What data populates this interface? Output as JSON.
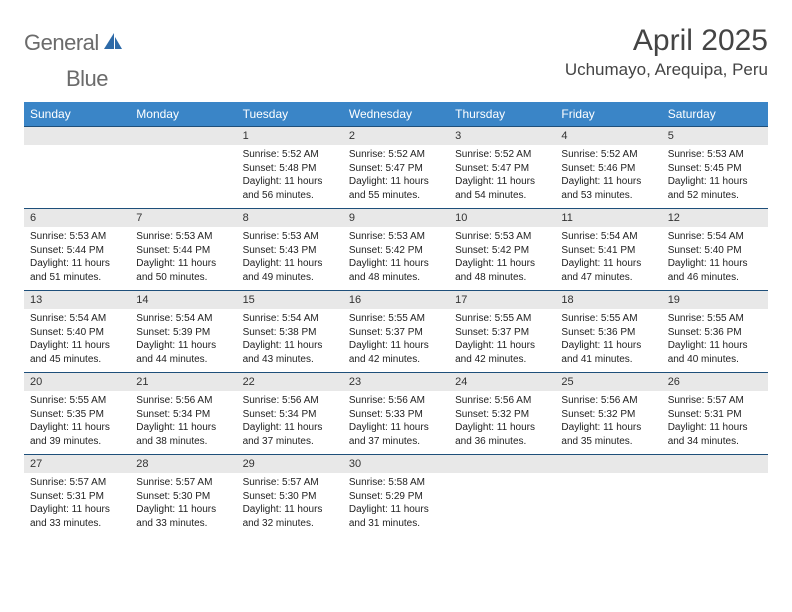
{
  "logo": {
    "text1": "General",
    "text2": "Blue"
  },
  "title": "April 2025",
  "location": "Uchumayo, Arequipa, Peru",
  "colors": {
    "header_bg": "#3a85c7",
    "header_text": "#ffffff",
    "daynum_bg": "#e8e8e8",
    "cell_border": "#1e4f7a",
    "body_text": "#222222",
    "title_text": "#444444",
    "logo_text": "#6b6b6b",
    "logo_accent": "#2d6aa8"
  },
  "fonts": {
    "title_size": 30,
    "location_size": 17,
    "header_size": 12,
    "daynum_size": 11,
    "content_size": 10
  },
  "day_headers": [
    "Sunday",
    "Monday",
    "Tuesday",
    "Wednesday",
    "Thursday",
    "Friday",
    "Saturday"
  ],
  "weeks": [
    [
      null,
      null,
      {
        "n": "1",
        "sr": "5:52 AM",
        "ss": "5:48 PM",
        "dl": "11 hours and 56 minutes."
      },
      {
        "n": "2",
        "sr": "5:52 AM",
        "ss": "5:47 PM",
        "dl": "11 hours and 55 minutes."
      },
      {
        "n": "3",
        "sr": "5:52 AM",
        "ss": "5:47 PM",
        "dl": "11 hours and 54 minutes."
      },
      {
        "n": "4",
        "sr": "5:52 AM",
        "ss": "5:46 PM",
        "dl": "11 hours and 53 minutes."
      },
      {
        "n": "5",
        "sr": "5:53 AM",
        "ss": "5:45 PM",
        "dl": "11 hours and 52 minutes."
      }
    ],
    [
      {
        "n": "6",
        "sr": "5:53 AM",
        "ss": "5:44 PM",
        "dl": "11 hours and 51 minutes."
      },
      {
        "n": "7",
        "sr": "5:53 AM",
        "ss": "5:44 PM",
        "dl": "11 hours and 50 minutes."
      },
      {
        "n": "8",
        "sr": "5:53 AM",
        "ss": "5:43 PM",
        "dl": "11 hours and 49 minutes."
      },
      {
        "n": "9",
        "sr": "5:53 AM",
        "ss": "5:42 PM",
        "dl": "11 hours and 48 minutes."
      },
      {
        "n": "10",
        "sr": "5:53 AM",
        "ss": "5:42 PM",
        "dl": "11 hours and 48 minutes."
      },
      {
        "n": "11",
        "sr": "5:54 AM",
        "ss": "5:41 PM",
        "dl": "11 hours and 47 minutes."
      },
      {
        "n": "12",
        "sr": "5:54 AM",
        "ss": "5:40 PM",
        "dl": "11 hours and 46 minutes."
      }
    ],
    [
      {
        "n": "13",
        "sr": "5:54 AM",
        "ss": "5:40 PM",
        "dl": "11 hours and 45 minutes."
      },
      {
        "n": "14",
        "sr": "5:54 AM",
        "ss": "5:39 PM",
        "dl": "11 hours and 44 minutes."
      },
      {
        "n": "15",
        "sr": "5:54 AM",
        "ss": "5:38 PM",
        "dl": "11 hours and 43 minutes."
      },
      {
        "n": "16",
        "sr": "5:55 AM",
        "ss": "5:37 PM",
        "dl": "11 hours and 42 minutes."
      },
      {
        "n": "17",
        "sr": "5:55 AM",
        "ss": "5:37 PM",
        "dl": "11 hours and 42 minutes."
      },
      {
        "n": "18",
        "sr": "5:55 AM",
        "ss": "5:36 PM",
        "dl": "11 hours and 41 minutes."
      },
      {
        "n": "19",
        "sr": "5:55 AM",
        "ss": "5:36 PM",
        "dl": "11 hours and 40 minutes."
      }
    ],
    [
      {
        "n": "20",
        "sr": "5:55 AM",
        "ss": "5:35 PM",
        "dl": "11 hours and 39 minutes."
      },
      {
        "n": "21",
        "sr": "5:56 AM",
        "ss": "5:34 PM",
        "dl": "11 hours and 38 minutes."
      },
      {
        "n": "22",
        "sr": "5:56 AM",
        "ss": "5:34 PM",
        "dl": "11 hours and 37 minutes."
      },
      {
        "n": "23",
        "sr": "5:56 AM",
        "ss": "5:33 PM",
        "dl": "11 hours and 37 minutes."
      },
      {
        "n": "24",
        "sr": "5:56 AM",
        "ss": "5:32 PM",
        "dl": "11 hours and 36 minutes."
      },
      {
        "n": "25",
        "sr": "5:56 AM",
        "ss": "5:32 PM",
        "dl": "11 hours and 35 minutes."
      },
      {
        "n": "26",
        "sr": "5:57 AM",
        "ss": "5:31 PM",
        "dl": "11 hours and 34 minutes."
      }
    ],
    [
      {
        "n": "27",
        "sr": "5:57 AM",
        "ss": "5:31 PM",
        "dl": "11 hours and 33 minutes."
      },
      {
        "n": "28",
        "sr": "5:57 AM",
        "ss": "5:30 PM",
        "dl": "11 hours and 33 minutes."
      },
      {
        "n": "29",
        "sr": "5:57 AM",
        "ss": "5:30 PM",
        "dl": "11 hours and 32 minutes."
      },
      {
        "n": "30",
        "sr": "5:58 AM",
        "ss": "5:29 PM",
        "dl": "11 hours and 31 minutes."
      },
      null,
      null,
      null
    ]
  ],
  "labels": {
    "sunrise": "Sunrise:",
    "sunset": "Sunset:",
    "daylight": "Daylight:"
  }
}
